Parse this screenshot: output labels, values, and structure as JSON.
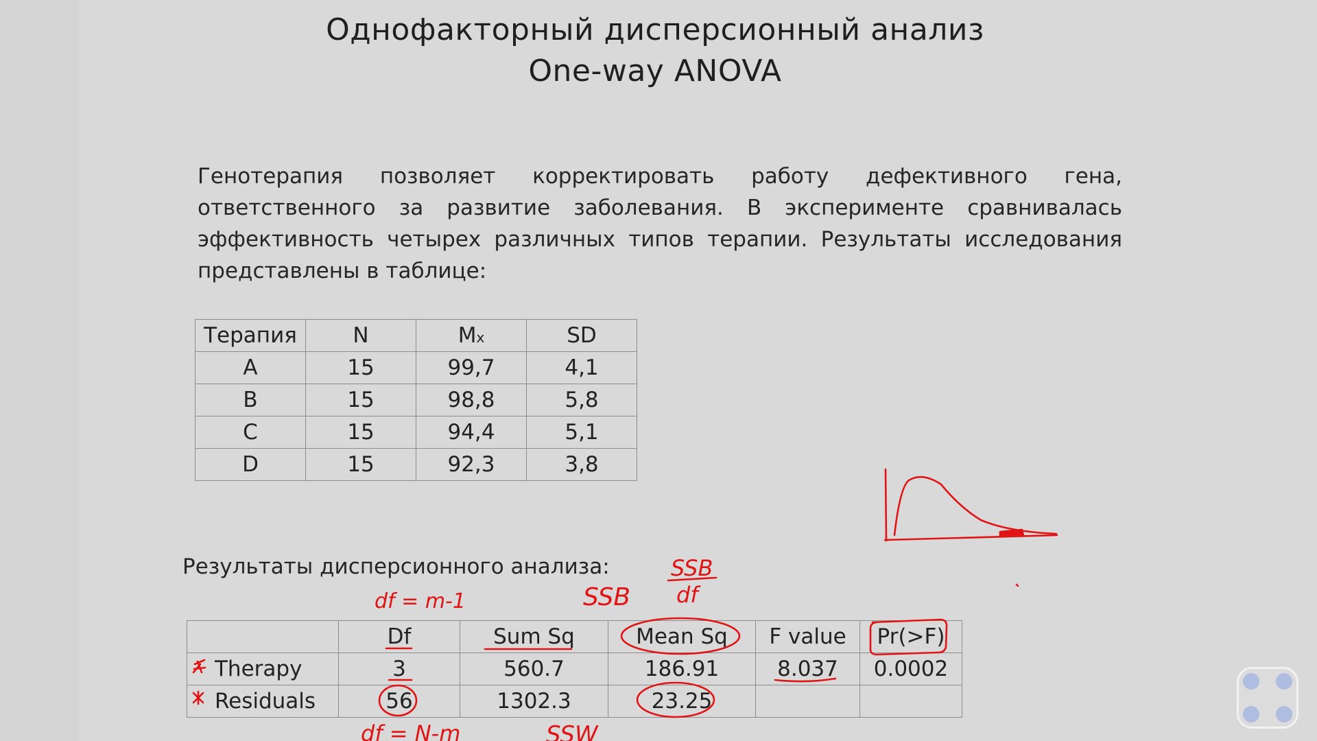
{
  "slide": {
    "title_line1": "Однофакторный дисперсионный анализ",
    "title_line2": "One-way ANOVA",
    "intro": "Генотерапия позволяет корректировать работу дефективного гена, ответственного за развитие заболевания. В эксперименте сравнивалась эффективность четырех различных типов терапии. Результаты исследования представлены в таблице:",
    "therapy_table": {
      "headers": {
        "therapy": "Терапия",
        "n": "N",
        "mean_main": "M",
        "mean_sub": "x",
        "sd": "SD"
      },
      "rows": [
        {
          "therapy": "A",
          "n": "15",
          "mean": "99,7",
          "sd": "4,1"
        },
        {
          "therapy": "B",
          "n": "15",
          "mean": "98,8",
          "sd": "5,8"
        },
        {
          "therapy": "C",
          "n": "15",
          "mean": "94,4",
          "sd": "5,1"
        },
        {
          "therapy": "D",
          "n": "15",
          "mean": "92,3",
          "sd": "3,8"
        }
      ]
    },
    "results_label": "Результаты дисперсионного анализа:",
    "anova_table": {
      "headers": {
        "df": "Df",
        "sum_sq": "Sum Sq",
        "mean_sq": "Mean Sq",
        "f_value": "F value",
        "p_value": "Pr(>F)"
      },
      "rows": [
        {
          "label": "Therapy",
          "df": "3",
          "sum_sq": "560.7",
          "mean_sq": "186.91",
          "f_value": "8.037",
          "p_value": "0.0002"
        },
        {
          "label": "Residuals",
          "df": "56",
          "sum_sq": "1302.3",
          "mean_sq": "23.25",
          "f_value": "",
          "p_value": ""
        }
      ]
    }
  },
  "annotations": {
    "df_between": "df = m-1",
    "ssb": "SSB",
    "ssb_fraction_top": "SSB",
    "ssb_fraction_bottom": "df",
    "df_within": "df = N-m",
    "ssw": "SSW",
    "ink_color": "#e01414",
    "f_distribution_sketch": "f-distribution-curve"
  },
  "navigation": {
    "icon": "slide-navigation-icon",
    "dot_color": "#aebde0"
  }
}
